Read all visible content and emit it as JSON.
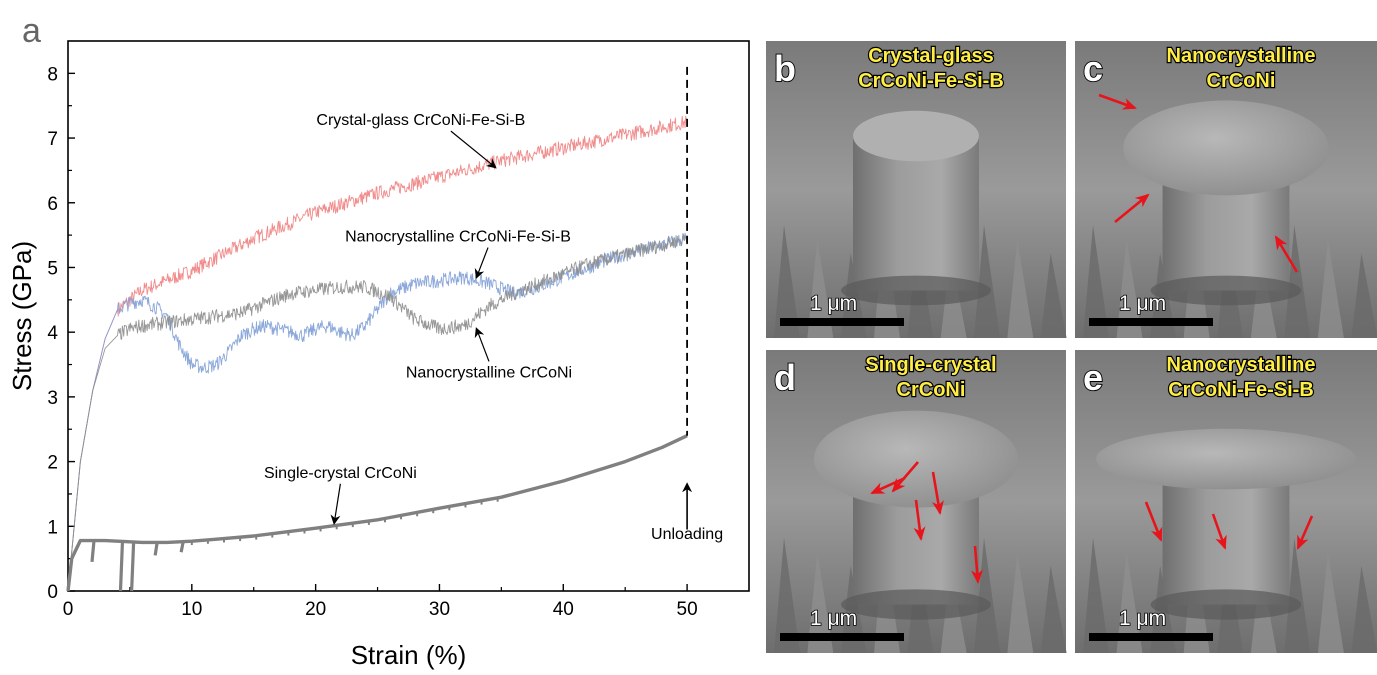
{
  "figure": {
    "panel_a_label": "a",
    "panels": [
      {
        "label": "b",
        "caption_lines": [
          "Crystal-glass",
          "CrCoNi-Fe-Si-B"
        ],
        "scale": "1 μm",
        "arrows": 0
      },
      {
        "label": "c",
        "caption_lines": [
          "Nanocrystalline",
          "CrCoNi"
        ],
        "scale": "1 μm",
        "arrows": 3
      },
      {
        "label": "d",
        "caption_lines": [
          "Single-crystal",
          "CrCoNi"
        ],
        "scale": "1 μm",
        "arrows": 5
      },
      {
        "label": "e",
        "caption_lines": [
          "Nanocrystalline",
          "CrCoNi-Fe-Si-B"
        ],
        "scale": "1 μm",
        "arrows": 3
      }
    ]
  },
  "chart_data": {
    "type": "line",
    "title": "",
    "xlabel": "Strain (%)",
    "ylabel": "Stress (GPa)",
    "xlim": [
      0,
      55
    ],
    "ylim": [
      0,
      8.5
    ],
    "xticks": [
      0,
      10,
      20,
      30,
      40,
      50
    ],
    "yticks": [
      0,
      1,
      2,
      3,
      4,
      5,
      6,
      7,
      8
    ],
    "grid": false,
    "legend": "none",
    "series": [
      {
        "name": "Crystal-glass CrCoNi-Fe-Si-B",
        "color": "#f08080",
        "x": [
          0,
          0.5,
          1,
          2,
          3,
          4,
          5,
          6,
          8,
          10,
          12,
          15,
          20,
          25,
          30,
          35,
          40,
          45,
          50
        ],
        "y": [
          0,
          1.0,
          2.0,
          3.1,
          3.9,
          4.35,
          4.5,
          4.65,
          4.8,
          4.95,
          5.15,
          5.45,
          5.85,
          6.15,
          6.4,
          6.65,
          6.85,
          7.05,
          7.25
        ]
      },
      {
        "name": "Nanocrystalline CrCoNi-Fe-Si-B",
        "color": "#7f9fd6",
        "x": [
          0,
          0.5,
          1,
          2,
          3,
          4,
          5,
          6,
          7,
          8,
          9,
          10,
          11,
          12,
          13,
          14,
          15,
          16,
          17,
          18,
          19,
          20,
          21,
          22,
          23,
          24,
          25,
          26,
          28,
          30,
          32,
          34,
          36,
          38,
          40,
          42,
          44,
          46,
          48,
          50
        ],
        "y": [
          0,
          1.0,
          2.0,
          3.1,
          3.9,
          4.35,
          4.45,
          4.5,
          4.4,
          4.25,
          3.8,
          3.5,
          3.45,
          3.5,
          3.7,
          3.95,
          4.05,
          4.1,
          4.05,
          4.0,
          3.95,
          4.05,
          4.1,
          4.0,
          3.95,
          4.1,
          4.35,
          4.6,
          4.75,
          4.8,
          4.85,
          4.75,
          4.6,
          4.7,
          4.85,
          5.0,
          5.15,
          5.25,
          5.35,
          5.45
        ]
      },
      {
        "name": "Nanocrystalline CrCoNi",
        "color": "#8c8c8c",
        "x": [
          0,
          0.5,
          1,
          2,
          3,
          4,
          5,
          6,
          8,
          10,
          12,
          14,
          16,
          18,
          20,
          22,
          24,
          26,
          28,
          30,
          32,
          34,
          36,
          38,
          40,
          42,
          44,
          46,
          48,
          50
        ],
        "y": [
          0,
          1.0,
          2.0,
          3.1,
          3.75,
          3.95,
          4.05,
          4.1,
          4.15,
          4.2,
          4.25,
          4.3,
          4.45,
          4.6,
          4.65,
          4.7,
          4.7,
          4.55,
          4.2,
          4.05,
          4.1,
          4.4,
          4.6,
          4.75,
          4.9,
          5.05,
          5.15,
          5.25,
          5.35,
          5.45
        ]
      },
      {
        "name": "Single-crystal CrCoNi",
        "color": "#808080",
        "x": [
          0,
          0.3,
          1,
          2,
          3,
          4,
          5,
          6,
          8,
          10,
          12,
          15,
          20,
          25,
          30,
          35,
          40,
          45,
          48,
          50
        ],
        "y": [
          0,
          0.5,
          0.78,
          0.78,
          0.78,
          0.77,
          0.76,
          0.75,
          0.75,
          0.77,
          0.8,
          0.85,
          0.97,
          1.1,
          1.28,
          1.45,
          1.7,
          2.0,
          2.22,
          2.4
        ]
      }
    ],
    "drops": [
      {
        "x": 2.1,
        "from": 0.78,
        "to": 0.45
      },
      {
        "x": 4.4,
        "from": 0.77,
        "to": 0.0
      },
      {
        "x": 5.3,
        "from": 0.76,
        "to": 0.0
      },
      {
        "x": 7.2,
        "from": 0.75,
        "to": 0.55
      },
      {
        "x": 9.3,
        "from": 0.76,
        "to": 0.6
      }
    ],
    "annotations": [
      {
        "text": "Crystal-glass CrCoNi-Fe-Si-B",
        "text_x": 28.5,
        "text_y": 7.2,
        "arrow_to_x": 34.5,
        "arrow_to_y": 6.55
      },
      {
        "text": "Nanocrystalline CrCoNi-Fe-Si-B",
        "text_x": 31.5,
        "text_y": 5.4,
        "arrow_to_x": 33,
        "arrow_to_y": 4.85
      },
      {
        "text": "Nanocrystalline CrCoNi",
        "text_x": 34,
        "text_y": 3.3,
        "arrow_to_x": 33,
        "arrow_to_y": 4.05
      },
      {
        "text": "Single-crystal CrCoNi",
        "text_x": 22,
        "text_y": 1.75,
        "arrow_to_x": 21.5,
        "arrow_to_y": 1.05
      }
    ],
    "unloading": {
      "x": 50,
      "label": "Unloading"
    }
  }
}
